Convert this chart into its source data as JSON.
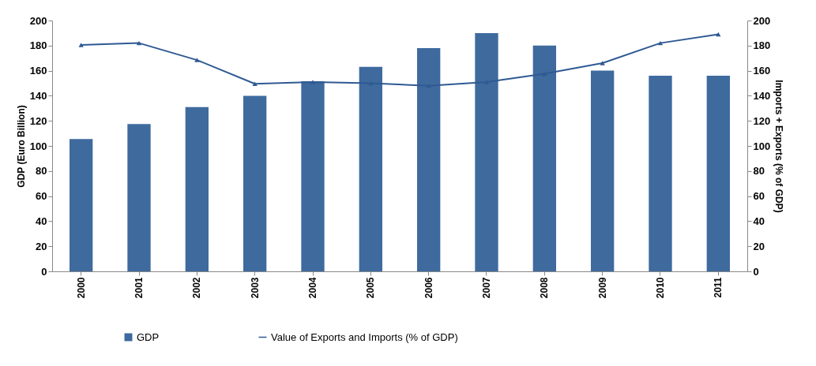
{
  "chart_data": {
    "type": "bar",
    "ylabel": "GDP (Euro Billion)",
    "y2label": "Imports + Exports  (% of GDP)",
    "categories": [
      "2000",
      "2001",
      "2002",
      "2003",
      "2004",
      "2005",
      "2006",
      "2007",
      "2008",
      "2009",
      "2010",
      "2011"
    ],
    "series": [
      {
        "name": "GDP",
        "color": "#3e6a9e",
        "values": [
          105.5,
          117.5,
          131,
          140,
          151.5,
          163,
          178,
          190,
          180,
          160,
          156,
          156
        ]
      },
      {
        "name": "Value of Exports and Imports (% of GDP)",
        "type": "line",
        "axis": "y2",
        "color": "#2f5a93",
        "marker": "triangle",
        "values": [
          180.5,
          182,
          168.5,
          149.5,
          151,
          150,
          148,
          151,
          157.5,
          166,
          182,
          189
        ]
      }
    ],
    "ylim": [
      0,
      200
    ],
    "yticks": [
      0,
      20,
      40,
      60,
      80,
      100,
      120,
      140,
      160,
      180,
      200
    ],
    "y2lim": [
      0,
      200
    ],
    "y2ticks": [
      0,
      20,
      40,
      60,
      80,
      100,
      120,
      140,
      160,
      180,
      200
    ],
    "grid": false,
    "legend": "bottom"
  }
}
